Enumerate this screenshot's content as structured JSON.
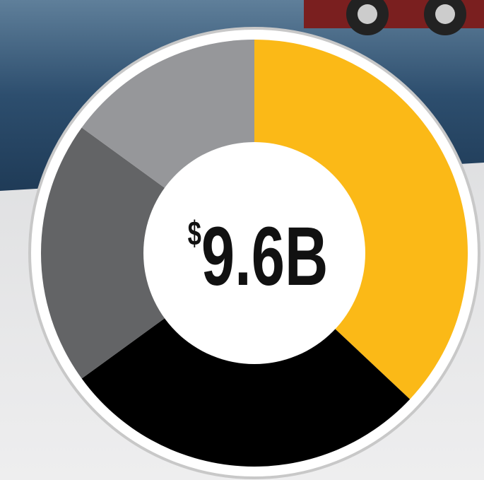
{
  "chart_data": {
    "type": "donut",
    "center_label": {
      "currency": "$",
      "amount": "9.6B"
    },
    "categories": [
      null,
      null,
      null,
      null
    ],
    "values": [
      37,
      28,
      20,
      15
    ],
    "colors": [
      "#fbb917",
      "#000000",
      "#636466",
      "#96979a"
    ]
  }
}
